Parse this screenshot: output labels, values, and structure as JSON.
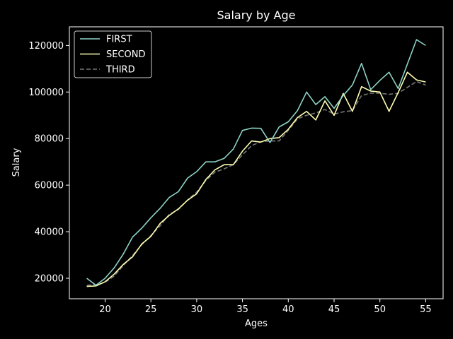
{
  "chart_data": {
    "type": "line",
    "title": "Salary by Age",
    "xlabel": "Ages",
    "ylabel": "Salary",
    "xlim": [
      16.1,
      56.9
    ],
    "ylim": [
      11200,
      128000
    ],
    "xticks": [
      20,
      25,
      30,
      35,
      40,
      45,
      50,
      55
    ],
    "yticks": [
      20000,
      40000,
      60000,
      80000,
      100000,
      120000
    ],
    "legend_position": "top-left",
    "x": [
      18,
      19,
      20,
      21,
      22,
      23,
      24,
      25,
      26,
      27,
      28,
      29,
      30,
      31,
      32,
      33,
      34,
      35,
      36,
      37,
      38,
      39,
      40,
      41,
      42,
      43,
      44,
      45,
      46,
      47,
      48,
      49,
      50,
      51,
      52,
      53,
      54,
      55
    ],
    "series": [
      {
        "name": "FIRST",
        "color": "#8dd3c7",
        "style": "solid",
        "values": [
          20000,
          17000,
          20000,
          24500,
          30500,
          37700,
          41500,
          46000,
          50000,
          54700,
          57200,
          63000,
          65800,
          70000,
          70000,
          71500,
          75500,
          83500,
          84500,
          84400,
          78300,
          85000,
          87200,
          92000,
          100000,
          94600,
          98000,
          93000,
          98500,
          103000,
          112300,
          101000,
          105000,
          108500,
          101500,
          112000,
          122500,
          120000
        ]
      },
      {
        "name": "SECOND",
        "color": "#ffffb3",
        "style": "solid",
        "values": [
          16500,
          16700,
          18500,
          21800,
          26000,
          29200,
          34700,
          38000,
          43500,
          47000,
          49800,
          53500,
          56300,
          62400,
          66600,
          68800,
          68800,
          74600,
          79000,
          78500,
          80000,
          80400,
          84000,
          89000,
          91700,
          88000,
          96200,
          90000,
          99400,
          91700,
          102300,
          100400,
          100000,
          91700,
          99800,
          108500,
          105200,
          104300
        ]
      },
      {
        "name": "THIRD",
        "color": "#777777",
        "style": "dashed",
        "values": [
          17000,
          17200,
          18200,
          21000,
          25500,
          29800,
          34400,
          38400,
          42500,
          47500,
          49500,
          53600,
          57000,
          62000,
          65600,
          67000,
          68800,
          73000,
          77000,
          78600,
          79000,
          79000,
          83500,
          88500,
          90000,
          91000,
          92500,
          90500,
          91500,
          92000,
          98500,
          99500,
          99500,
          99000,
          99500,
          102000,
          104500,
          103000
        ]
      }
    ]
  }
}
